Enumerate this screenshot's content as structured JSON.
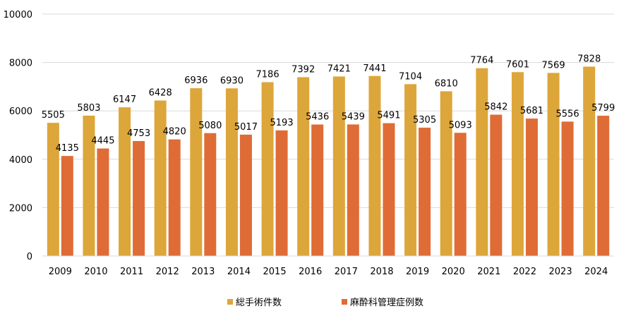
{
  "chart_data": {
    "type": "bar",
    "categories": [
      "2009",
      "2010",
      "2011",
      "2012",
      "2013",
      "2014",
      "2015",
      "2016",
      "2017",
      "2018",
      "2019",
      "2020",
      "2021",
      "2022",
      "2023",
      "2024"
    ],
    "series": [
      {
        "name": "総手術件数",
        "color": "#DDA63A",
        "values": [
          5505,
          5803,
          6147,
          6428,
          6936,
          6930,
          7186,
          7392,
          7421,
          7441,
          7104,
          6810,
          7764,
          7601,
          7569,
          7828
        ]
      },
      {
        "name": "麻酔科管理症例数",
        "color": "#DF6C36",
        "values": [
          4135,
          4445,
          4753,
          4820,
          5080,
          5017,
          5193,
          5436,
          5439,
          5491,
          5305,
          5093,
          5842,
          5681,
          5556,
          5799
        ]
      }
    ],
    "ylim": [
      0,
      10000
    ],
    "yticks": [
      0,
      2000,
      4000,
      6000,
      8000,
      10000
    ],
    "grid": true,
    "legend_position": "bottom",
    "data_labels": true,
    "title": "",
    "xlabel": "",
    "ylabel": ""
  }
}
